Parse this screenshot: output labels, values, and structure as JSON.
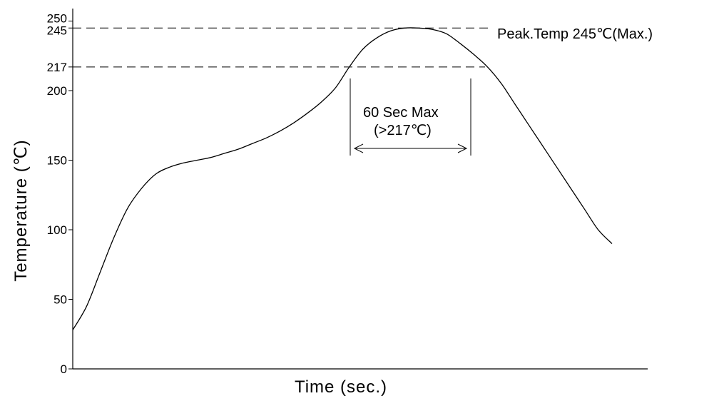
{
  "chart_data": {
    "type": "line",
    "title": "",
    "xlabel": "Time (sec.)",
    "ylabel": "Temperature (℃)",
    "y_ticks": [
      0,
      50,
      100,
      150,
      200,
      217,
      245,
      250
    ],
    "ylim": [
      0,
      250
    ],
    "grid": false,
    "series": [
      {
        "values_y": [
          28,
          45,
          70,
          95,
          116,
          130,
          140,
          145,
          148,
          150,
          152,
          155,
          158,
          162,
          166,
          171,
          177,
          184,
          192,
          202,
          217,
          230,
          238,
          243,
          245,
          245,
          244,
          241,
          234,
          226,
          217,
          205,
          190,
          175,
          160,
          145,
          130,
          115,
          100,
          90
        ]
      }
    ],
    "reference_lines": [
      {
        "y": 245,
        "label": "Peak.Temp 245℃(Max.)"
      },
      {
        "y": 217,
        "label": ""
      }
    ],
    "annotations": [
      {
        "lines": [
          "60 Sec Max",
          "(>217℃)"
        ]
      }
    ]
  },
  "colors": {
    "line": "#000000",
    "background": "#ffffff"
  }
}
